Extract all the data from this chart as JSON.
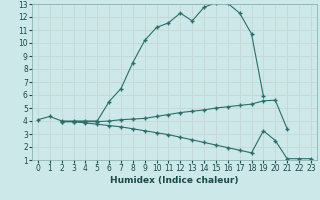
{
  "xlabel": "Humidex (Indice chaleur)",
  "bg_color": "#cce8e8",
  "grid_color": "#c8dada",
  "line_color": "#2a6e6a",
  "xlim": [
    -0.5,
    23.5
  ],
  "ylim": [
    1,
    13
  ],
  "xticks": [
    0,
    1,
    2,
    3,
    4,
    5,
    6,
    7,
    8,
    9,
    10,
    11,
    12,
    13,
    14,
    15,
    16,
    17,
    18,
    19,
    20,
    21,
    22,
    23
  ],
  "yticks": [
    1,
    2,
    3,
    4,
    5,
    6,
    7,
    8,
    9,
    10,
    11,
    12,
    13
  ],
  "curve1_x": [
    0,
    1,
    2,
    3,
    4,
    5,
    6,
    7,
    8,
    9,
    10,
    11,
    12,
    13,
    14,
    15,
    16,
    17,
    18,
    19
  ],
  "curve1_y": [
    4.1,
    4.35,
    4.0,
    4.0,
    4.0,
    4.0,
    5.5,
    6.5,
    8.5,
    10.2,
    11.2,
    11.55,
    12.3,
    11.7,
    12.75,
    13.1,
    13.05,
    12.3,
    10.7,
    5.9
  ],
  "curve2_x": [
    2,
    3,
    4,
    5,
    6,
    7,
    8,
    9,
    10,
    11,
    12,
    13,
    14,
    15,
    16,
    17,
    18,
    19,
    20,
    21
  ],
  "curve2_y": [
    3.95,
    3.95,
    3.95,
    3.95,
    4.0,
    4.1,
    4.15,
    4.2,
    4.35,
    4.5,
    4.65,
    4.75,
    4.85,
    5.0,
    5.1,
    5.2,
    5.3,
    5.55,
    5.6,
    3.4
  ],
  "curve3_x": [
    2,
    3,
    4,
    5,
    6,
    7,
    8,
    9,
    10,
    11,
    12,
    13,
    14,
    15,
    16,
    17,
    18,
    19,
    20,
    21,
    22,
    23
  ],
  "curve3_y": [
    3.95,
    3.95,
    3.85,
    3.75,
    3.65,
    3.55,
    3.4,
    3.25,
    3.1,
    2.95,
    2.75,
    2.55,
    2.35,
    2.15,
    1.95,
    1.75,
    1.55,
    3.25,
    2.5,
    1.1,
    1.1,
    1.1
  ]
}
